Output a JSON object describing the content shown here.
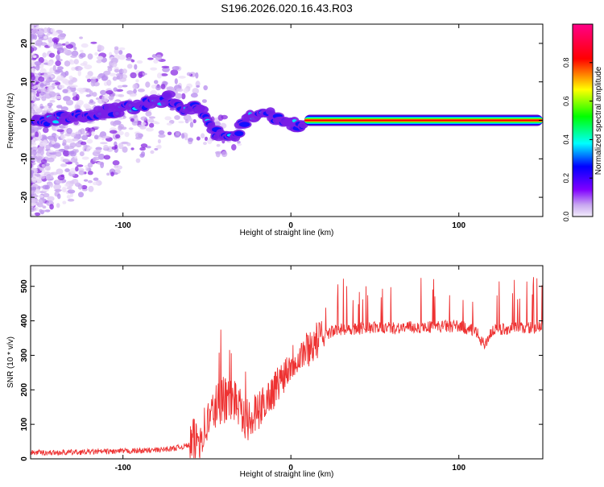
{
  "title": "S196.2026.020.16.43.R03",
  "chart_data": [
    {
      "type": "heatmap",
      "title": "S196.2026.020.16.43.R03",
      "xlabel": "Height of straight line (km)",
      "ylabel": "Frequency (Hz)",
      "xlim": [
        -155,
        150
      ],
      "ylim": [
        -25,
        25
      ],
      "xticks": [
        -100,
        0,
        100
      ],
      "yticks": [
        -20,
        -10,
        0,
        10,
        20
      ],
      "ridge": {
        "x": [
          -145,
          -130,
          -115,
          -100,
          -90,
          -80,
          -72,
          -65,
          -58,
          -52,
          -46,
          -40,
          -35,
          -30,
          -25,
          -20,
          -15,
          -10,
          -5,
          0,
          5,
          10,
          20,
          50,
          100,
          150
        ],
        "freq": [
          0,
          1,
          2,
          3,
          4,
          5,
          6,
          2,
          4,
          2,
          -3,
          -4,
          -5,
          -2,
          2,
          1,
          2,
          1,
          0,
          -1,
          -1,
          0,
          0,
          0,
          0,
          0
        ]
      },
      "colorbar": {
        "label": "Normalized spectral amplitude",
        "ticks": [
          0.0,
          0.2,
          0.4,
          0.6,
          0.8
        ],
        "tick_labels": [
          "0.0",
          "0.2",
          "0.4",
          "0.6",
          "0.8"
        ],
        "range": [
          0,
          1
        ],
        "colormap": "hsv-reverse: #e8d8f8 → #8000ff → #0000ff → #00ffff → #00ff00 → #ffff00 → #ff0000 → #ff00aa"
      }
    },
    {
      "type": "line",
      "xlabel": "Height of straight line (km)",
      "ylabel": "SNR (10 * v/v)",
      "xlim": [
        -155,
        150
      ],
      "ylim": [
        0,
        560
      ],
      "xticks": [
        -100,
        0,
        100
      ],
      "yticks": [
        0,
        100,
        200,
        300,
        400,
        500
      ],
      "line_color": "#ee3333",
      "series": [
        {
          "name": "SNR",
          "x": [
            -155,
            -140,
            -120,
            -100,
            -80,
            -70,
            -60,
            -55,
            -50,
            -45,
            -40,
            -35,
            -30,
            -25,
            -20,
            -15,
            -10,
            -5,
            0,
            5,
            10,
            15,
            20,
            25,
            30,
            40,
            50,
            60,
            80,
            100,
            110,
            115,
            120,
            130,
            140,
            150
          ],
          "y": [
            18,
            18,
            20,
            22,
            25,
            30,
            40,
            60,
            100,
            150,
            170,
            175,
            160,
            100,
            130,
            170,
            200,
            240,
            280,
            300,
            320,
            340,
            360,
            370,
            375,
            378,
            380,
            380,
            382,
            385,
            370,
            330,
            372,
            378,
            380,
            382
          ]
        }
      ]
    }
  ]
}
